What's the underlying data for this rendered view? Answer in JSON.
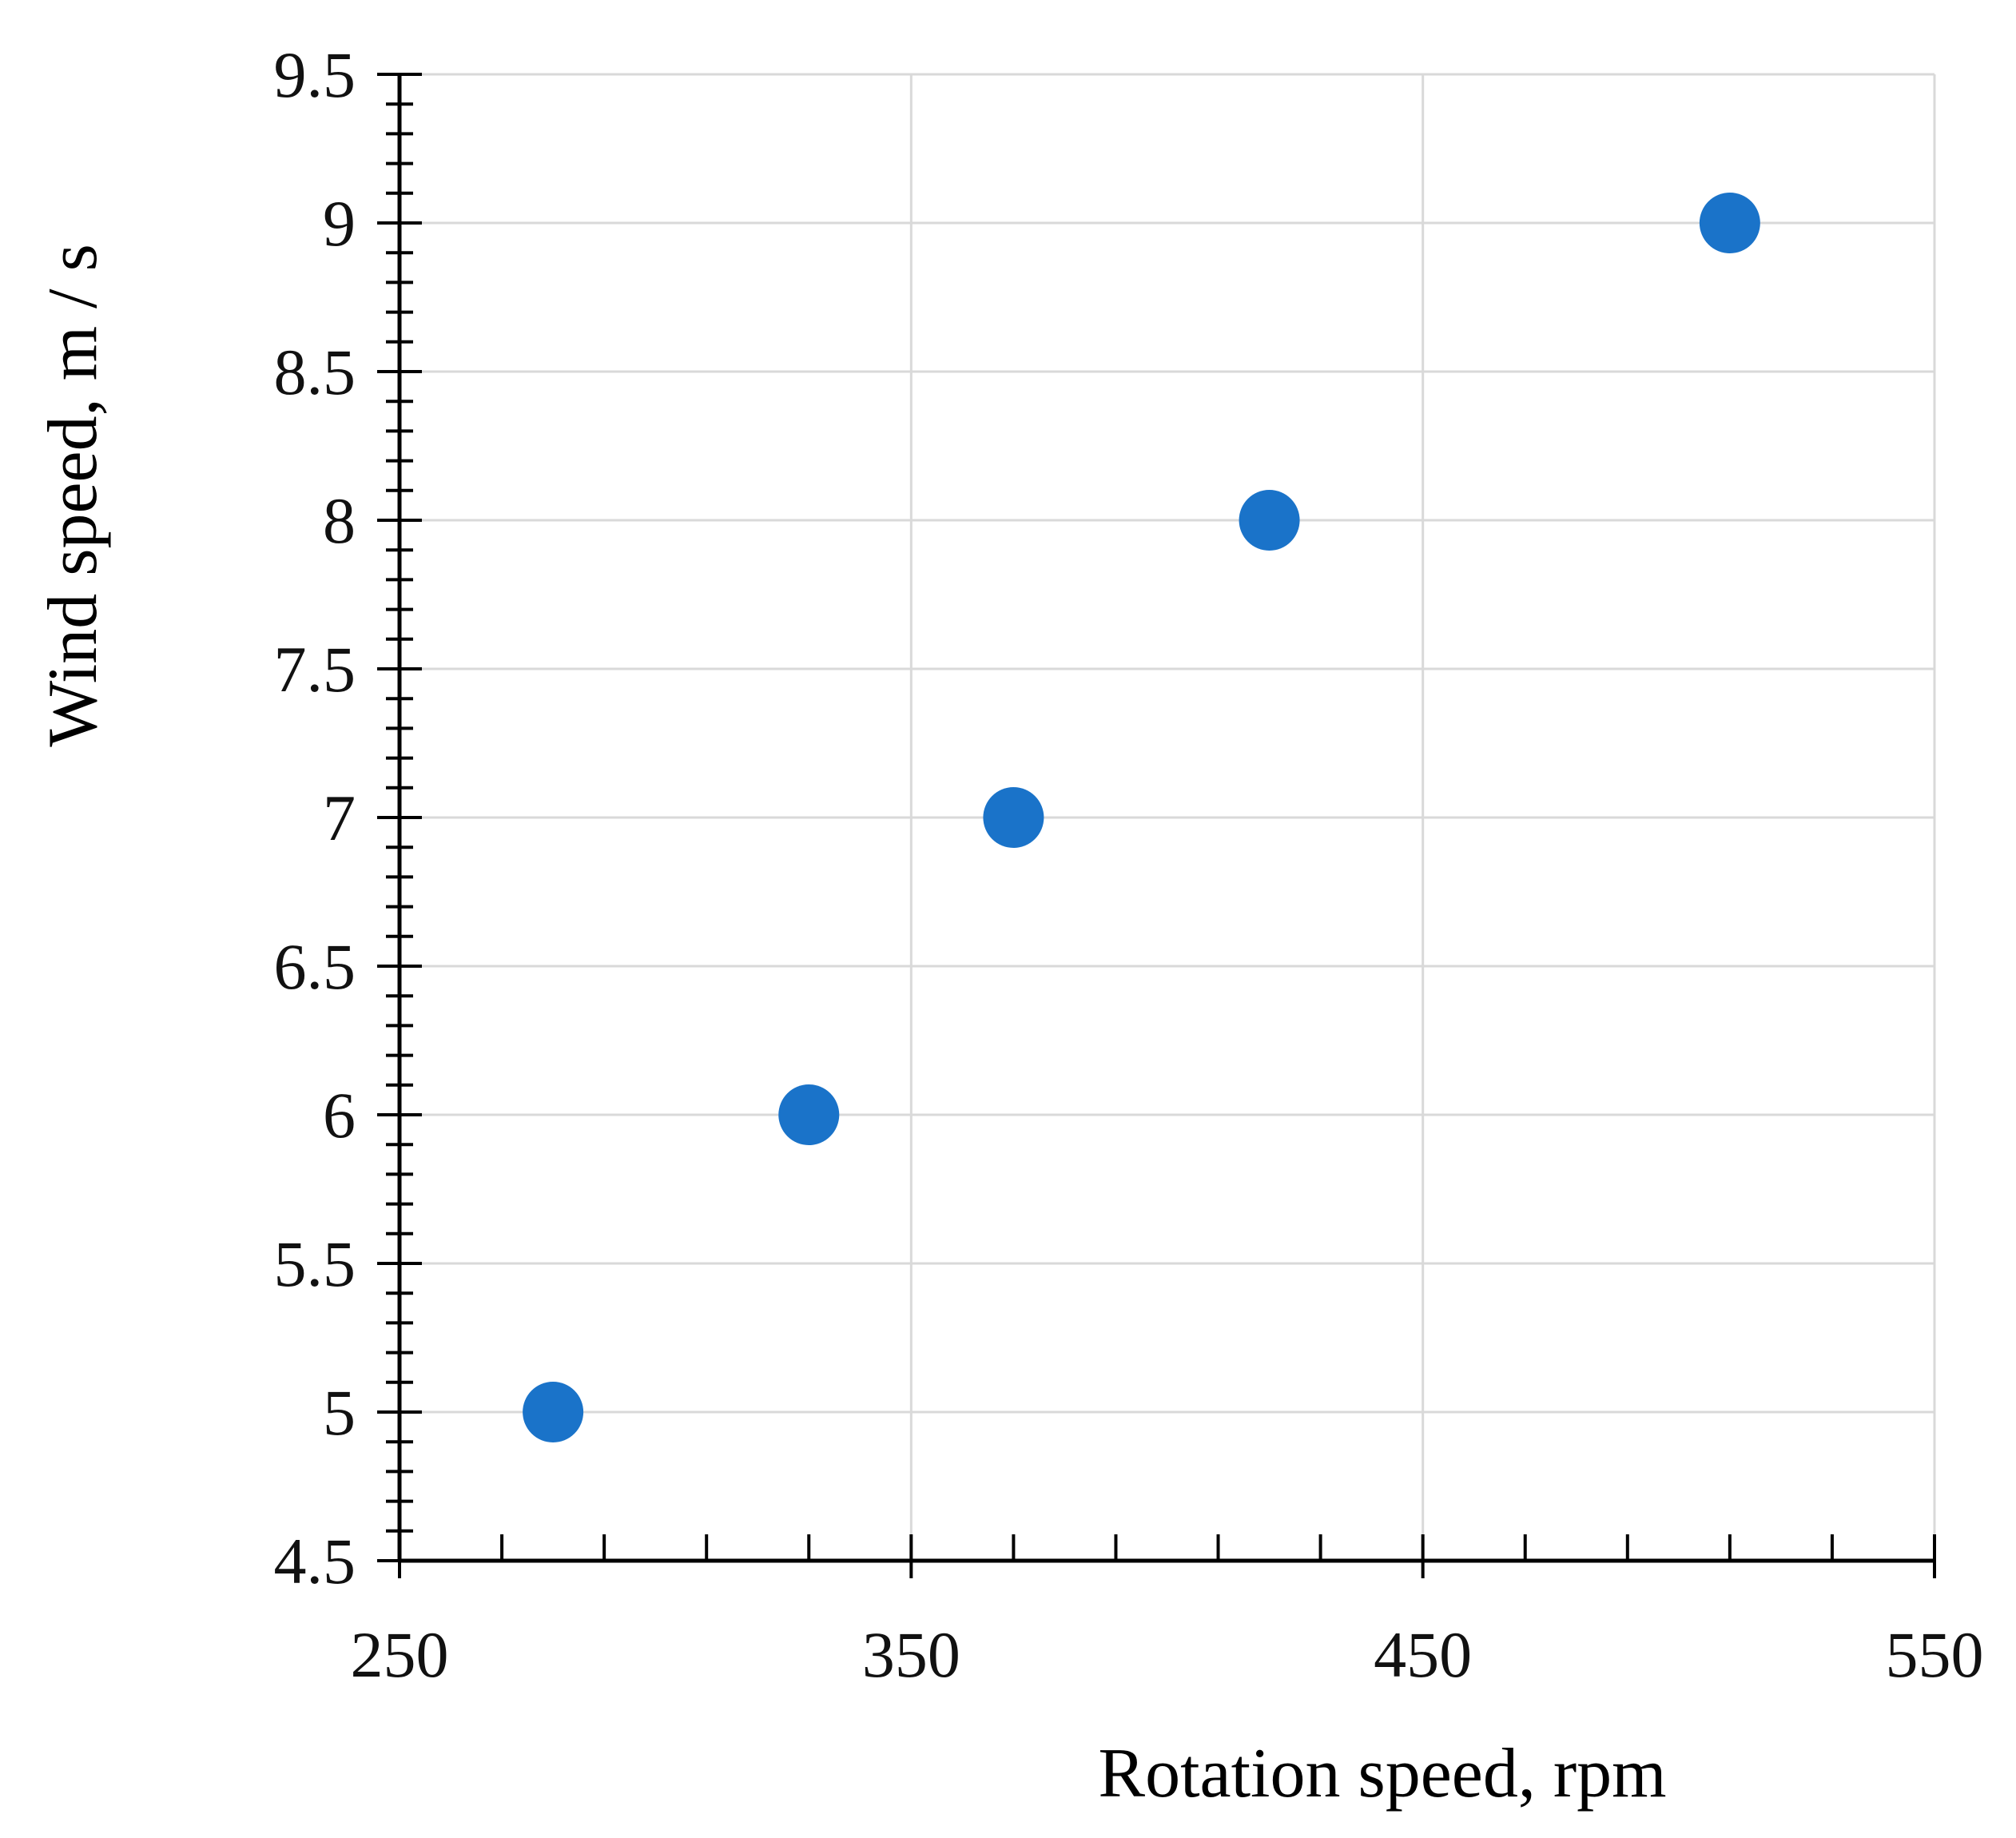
{
  "chart_data": {
    "type": "scatter",
    "title": "",
    "xlabel": "Rotation speed, rpm",
    "ylabel": "Wind speed, m / s",
    "xlim": [
      250,
      550
    ],
    "ylim": [
      4.5,
      9.5
    ],
    "x_ticks": [
      250,
      350,
      450,
      550
    ],
    "x_tick_labels": [
      "250",
      "350",
      "450",
      "550"
    ],
    "x_minor_step": 20,
    "y_ticks": [
      4.5,
      5,
      5.5,
      6,
      6.5,
      7,
      7.5,
      8,
      8.5,
      9,
      9.5
    ],
    "y_tick_labels": [
      "4.5",
      "5",
      "5.5",
      "6",
      "6.5",
      "7",
      "7.5",
      "8",
      "8.5",
      "9",
      "9.5"
    ],
    "y_minor_step": 0.1,
    "grid": true,
    "point_color": "#1a73c9",
    "series": [
      {
        "x": [
          280,
          330,
          370,
          420,
          510
        ],
        "y": [
          5,
          6,
          7,
          8,
          9
        ]
      }
    ]
  }
}
